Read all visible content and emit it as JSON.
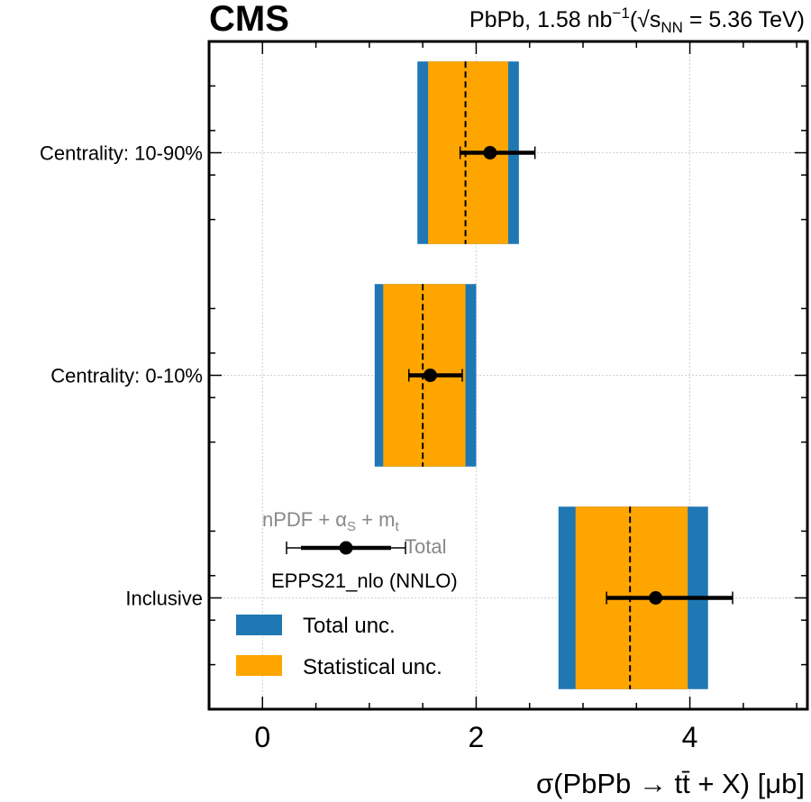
{
  "header": {
    "experiment": "CMS",
    "collision": "PbPb",
    "lumi_value": "1.58",
    "lumi_unit": "nb",
    "lumi_exp": "−1",
    "energy_open": "(",
    "sqrt_symbol": "√",
    "energy_var": "s",
    "energy_sub": "NN",
    "energy_value": "= 5.36 TeV)"
  },
  "chart_data": {
    "type": "forest",
    "xlabel": "σ(PbPb → tt̄ + X) [μb]",
    "xlim": [
      -0.5,
      5.1
    ],
    "xticks": [
      0,
      2,
      4
    ],
    "grid": true,
    "categories": [
      "Centrality: 10-90%",
      "Centrality: 0-10%",
      "Inclusive"
    ],
    "measurements": [
      {
        "label": "Centrality: 10-90%",
        "value": 1.9,
        "total_unc": [
          1.45,
          2.4
        ],
        "stat_unc": [
          1.55,
          2.3
        ]
      },
      {
        "label": "Centrality: 0-10%",
        "value": 1.5,
        "total_unc": [
          1.05,
          2.0
        ],
        "stat_unc": [
          1.13,
          1.9
        ]
      },
      {
        "label": "Inclusive",
        "value": 3.44,
        "total_unc": [
          2.77,
          4.17
        ],
        "stat_unc": [
          2.93,
          3.98
        ]
      }
    ],
    "theory": [
      {
        "label": "Centrality: 10-90%",
        "value": 2.13,
        "inner": [
          1.85,
          2.55
        ],
        "outer": [
          1.85,
          2.55
        ]
      },
      {
        "label": "Centrality: 0-10%",
        "value": 1.57,
        "inner": [
          1.37,
          1.87
        ],
        "outer": [
          1.37,
          1.87
        ]
      },
      {
        "label": "Inclusive",
        "value": 3.68,
        "inner": [
          3.22,
          4.4
        ],
        "outer": [
          3.22,
          4.4
        ]
      }
    ],
    "legend": {
      "position": "lower-left",
      "total_label": "Total unc.",
      "stat_label": "Statistical unc.",
      "total_color": "#1f77b4",
      "stat_color": "#ffa500"
    },
    "theory_legend": {
      "line1_parts": [
        "nPDF + α",
        "S",
        " + m",
        "t"
      ],
      "inner_total_label": "Total",
      "model_label": "EPPS21_nlo (NNLO)",
      "label_color": "#888888"
    }
  }
}
